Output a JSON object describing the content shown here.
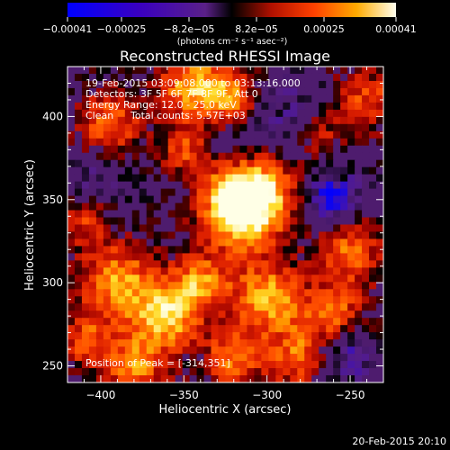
{
  "chart_data": {
    "type": "heatmap",
    "title": "Reconstructed RHESSI Image",
    "xlabel": "Heliocentric X (arcsec)",
    "ylabel": "Heliocentric Y (arcsec)",
    "xlim": [
      -420,
      -230
    ],
    "ylim": [
      240,
      430
    ],
    "x_ticks": [
      -400,
      -350,
      -300,
      -250
    ],
    "y_ticks": [
      250,
      300,
      350,
      400
    ],
    "x_tick_labels": [
      "−400",
      "−350",
      "−300",
      "−250"
    ],
    "y_tick_labels": [
      "250",
      "300",
      "350",
      "400"
    ],
    "colorbar": {
      "range": [
        -0.00041,
        0.00041
      ],
      "tick_labels": [
        "−0.00041",
        "−0.00025",
        "−8.2e−05",
        "8.2e−05",
        "0.00025",
        "0.00041"
      ],
      "unit_label": "(photons cm⁻² s⁻¹ asec⁻²)"
    },
    "annotations": {
      "time_range": "19-Feb-2015 03:09:08.000 to 03:13:16.000",
      "detectors": "Detectors: 3F 5F 6F 7F 8F 9F, Att 0",
      "energy_range": "Energy Range: 12.0 - 25.0 keV",
      "method": "Clean",
      "total_counts": "Total counts: 5.57E+03",
      "peak_position": "Position of Peak = [-314,351]"
    },
    "peak": {
      "x": -314,
      "y": 351
    },
    "footer_date": "20-Feb-2015 20:10"
  }
}
